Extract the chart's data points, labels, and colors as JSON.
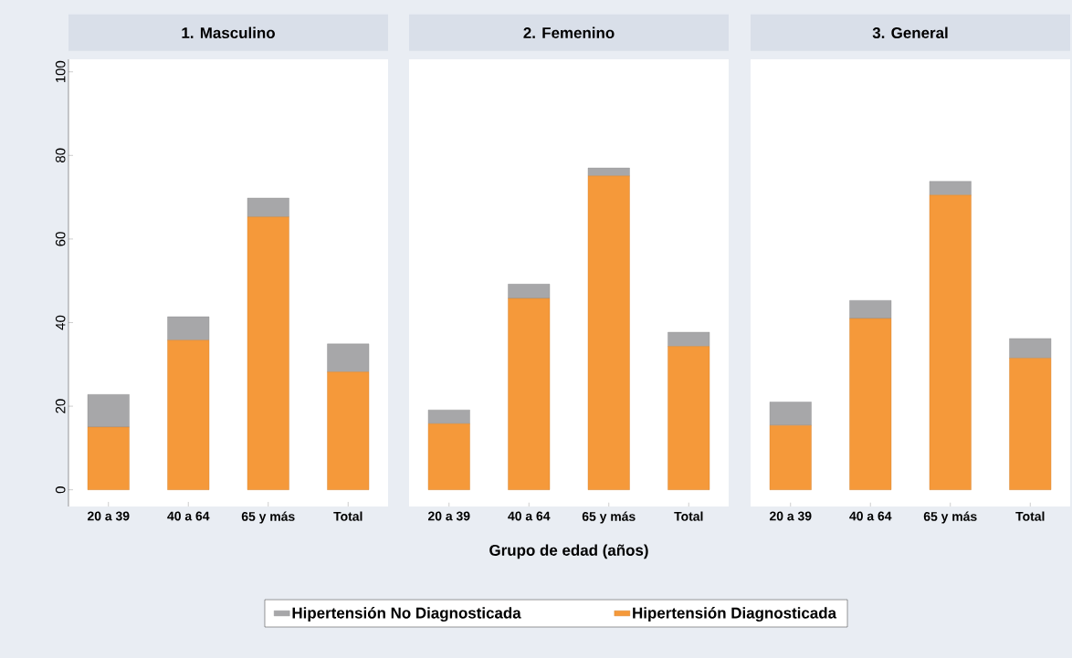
{
  "chart_data": [
    {
      "type": "bar",
      "title": "1. Masculino",
      "categories": [
        "20 a 39",
        "40 a 64",
        "65 y más",
        "Total"
      ],
      "stacked": true,
      "ylim": [
        -4,
        103
      ],
      "yticks": [
        0,
        20,
        40,
        60,
        80,
        100
      ],
      "series": [
        {
          "color": "#f5993a",
          "values": [
            15.0,
            35.8,
            65.3,
            28.2
          ]
        },
        {
          "color": "#a7a7a9",
          "values": [
            7.8,
            5.6,
            4.5,
            6.7
          ]
        }
      ]
    },
    {
      "type": "bar",
      "title": "2. Femenino",
      "xlabel": "Grupo de edad (años)",
      "categories": [
        "20 a 39",
        "40 a 64",
        "65 y más",
        "Total"
      ],
      "stacked": true,
      "ylim": [
        -4,
        103
      ],
      "yticks": [
        0,
        20,
        40,
        60,
        80,
        100
      ],
      "tick_labels": "x",
      "legend": "bottom",
      "series": [
        {
          "name": "Hipertensión Diagnosticada",
          "color": "#f5993a",
          "values": [
            15.8,
            45.8,
            75.1,
            34.3
          ]
        },
        {
          "name": "Hipertensión No Diagnosticada",
          "color": "#a7a7a9",
          "values": [
            3.3,
            3.4,
            1.9,
            3.4
          ]
        }
      ]
    },
    {
      "type": "bar",
      "title": "3. General",
      "categories": [
        "20 a 39",
        "40 a 64",
        "65 y más",
        "Total"
      ],
      "stacked": true,
      "ylim": [
        -4,
        103
      ],
      "yticks": [
        0,
        20,
        40,
        60,
        80,
        100
      ],
      "tick_labels": "x",
      "series": [
        {
          "color": "#f5993a",
          "values": [
            15.4,
            41.0,
            70.5,
            31.5
          ]
        },
        {
          "color": "#a7a7a9",
          "values": [
            5.6,
            4.3,
            3.3,
            4.7
          ]
        }
      ]
    }
  ]
}
